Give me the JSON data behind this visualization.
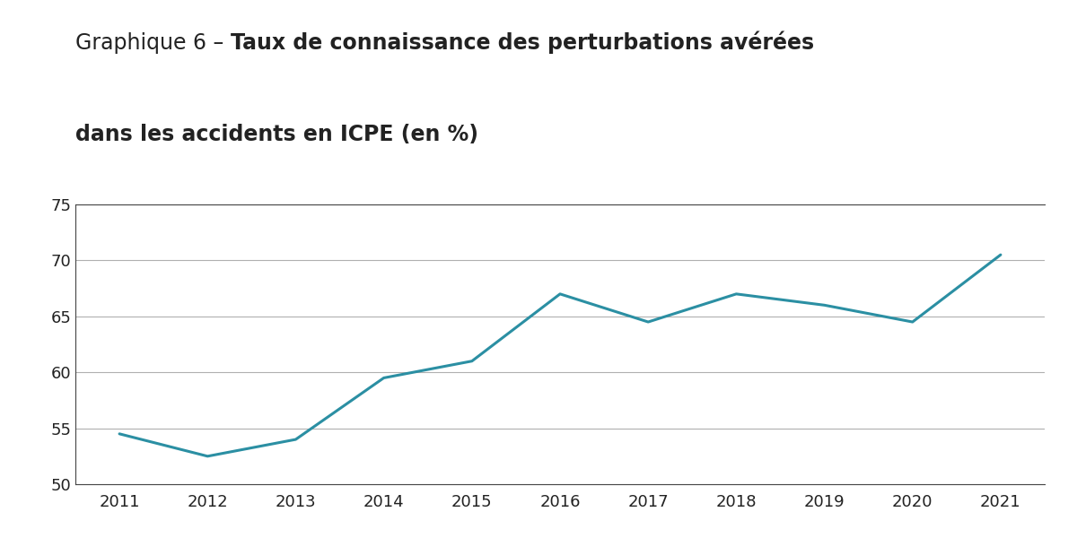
{
  "years": [
    2011,
    2012,
    2013,
    2014,
    2015,
    2016,
    2017,
    2018,
    2019,
    2020,
    2021
  ],
  "values": [
    54.5,
    52.5,
    54.0,
    59.5,
    61.0,
    67.0,
    64.5,
    67.0,
    66.0,
    64.5,
    70.5
  ],
  "line_color": "#2b8fa3",
  "line_width": 2.2,
  "ylim": [
    50,
    75
  ],
  "yticks": [
    50,
    55,
    60,
    65,
    70,
    75
  ],
  "xtick_labels": [
    "2011",
    "2012",
    "2013",
    "2014",
    "2015",
    "2016",
    "2017",
    "2018",
    "2019",
    "2020",
    "2021"
  ],
  "title_normal": "Graphique 6 – ",
  "title_bold_line1": "Taux de connaissance des perturbations avérées",
  "title_bold_line2": "dans les accidents en ICPE (en %)",
  "background_color": "#ffffff",
  "grid_color": "#b0b0b0",
  "spine_color": "#444444",
  "text_color": "#222222",
  "title_fontsize": 17,
  "tick_fontsize": 13
}
